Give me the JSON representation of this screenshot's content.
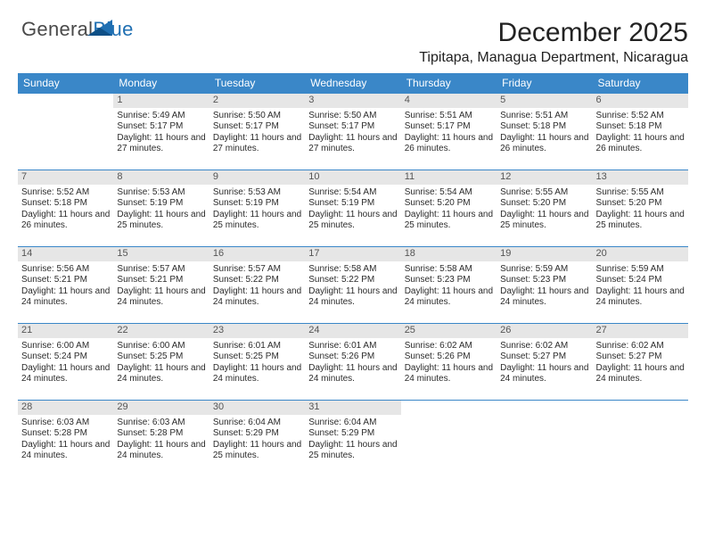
{
  "brand": {
    "word1": "General",
    "word2": "Blue",
    "accent_color": "#1f6fb2"
  },
  "title": "December 2025",
  "location": "Tipitapa, Managua Department, Nicaragua",
  "colors": {
    "header_bg": "#3a87c8",
    "header_text": "#ffffff",
    "daynum_bg": "#e6e6e6",
    "daynum_text": "#555555",
    "row_border": "#3a87c8",
    "body_text": "#2b2b2b",
    "page_bg": "#ffffff"
  },
  "typography": {
    "title_fontsize": 30,
    "location_fontsize": 16,
    "weekday_fontsize": 12,
    "cell_fontsize": 10,
    "daynum_fontsize": 11,
    "font_family": "Arial"
  },
  "weekdays": [
    "Sunday",
    "Monday",
    "Tuesday",
    "Wednesday",
    "Thursday",
    "Friday",
    "Saturday"
  ],
  "weeks": [
    [
      {
        "day": "",
        "sunrise": "",
        "sunset": "",
        "daylight": ""
      },
      {
        "day": "1",
        "sunrise": "Sunrise: 5:49 AM",
        "sunset": "Sunset: 5:17 PM",
        "daylight": "Daylight: 11 hours and 27 minutes."
      },
      {
        "day": "2",
        "sunrise": "Sunrise: 5:50 AM",
        "sunset": "Sunset: 5:17 PM",
        "daylight": "Daylight: 11 hours and 27 minutes."
      },
      {
        "day": "3",
        "sunrise": "Sunrise: 5:50 AM",
        "sunset": "Sunset: 5:17 PM",
        "daylight": "Daylight: 11 hours and 27 minutes."
      },
      {
        "day": "4",
        "sunrise": "Sunrise: 5:51 AM",
        "sunset": "Sunset: 5:17 PM",
        "daylight": "Daylight: 11 hours and 26 minutes."
      },
      {
        "day": "5",
        "sunrise": "Sunrise: 5:51 AM",
        "sunset": "Sunset: 5:18 PM",
        "daylight": "Daylight: 11 hours and 26 minutes."
      },
      {
        "day": "6",
        "sunrise": "Sunrise: 5:52 AM",
        "sunset": "Sunset: 5:18 PM",
        "daylight": "Daylight: 11 hours and 26 minutes."
      }
    ],
    [
      {
        "day": "7",
        "sunrise": "Sunrise: 5:52 AM",
        "sunset": "Sunset: 5:18 PM",
        "daylight": "Daylight: 11 hours and 26 minutes."
      },
      {
        "day": "8",
        "sunrise": "Sunrise: 5:53 AM",
        "sunset": "Sunset: 5:19 PM",
        "daylight": "Daylight: 11 hours and 25 minutes."
      },
      {
        "day": "9",
        "sunrise": "Sunrise: 5:53 AM",
        "sunset": "Sunset: 5:19 PM",
        "daylight": "Daylight: 11 hours and 25 minutes."
      },
      {
        "day": "10",
        "sunrise": "Sunrise: 5:54 AM",
        "sunset": "Sunset: 5:19 PM",
        "daylight": "Daylight: 11 hours and 25 minutes."
      },
      {
        "day": "11",
        "sunrise": "Sunrise: 5:54 AM",
        "sunset": "Sunset: 5:20 PM",
        "daylight": "Daylight: 11 hours and 25 minutes."
      },
      {
        "day": "12",
        "sunrise": "Sunrise: 5:55 AM",
        "sunset": "Sunset: 5:20 PM",
        "daylight": "Daylight: 11 hours and 25 minutes."
      },
      {
        "day": "13",
        "sunrise": "Sunrise: 5:55 AM",
        "sunset": "Sunset: 5:20 PM",
        "daylight": "Daylight: 11 hours and 25 minutes."
      }
    ],
    [
      {
        "day": "14",
        "sunrise": "Sunrise: 5:56 AM",
        "sunset": "Sunset: 5:21 PM",
        "daylight": "Daylight: 11 hours and 24 minutes."
      },
      {
        "day": "15",
        "sunrise": "Sunrise: 5:57 AM",
        "sunset": "Sunset: 5:21 PM",
        "daylight": "Daylight: 11 hours and 24 minutes."
      },
      {
        "day": "16",
        "sunrise": "Sunrise: 5:57 AM",
        "sunset": "Sunset: 5:22 PM",
        "daylight": "Daylight: 11 hours and 24 minutes."
      },
      {
        "day": "17",
        "sunrise": "Sunrise: 5:58 AM",
        "sunset": "Sunset: 5:22 PM",
        "daylight": "Daylight: 11 hours and 24 minutes."
      },
      {
        "day": "18",
        "sunrise": "Sunrise: 5:58 AM",
        "sunset": "Sunset: 5:23 PM",
        "daylight": "Daylight: 11 hours and 24 minutes."
      },
      {
        "day": "19",
        "sunrise": "Sunrise: 5:59 AM",
        "sunset": "Sunset: 5:23 PM",
        "daylight": "Daylight: 11 hours and 24 minutes."
      },
      {
        "day": "20",
        "sunrise": "Sunrise: 5:59 AM",
        "sunset": "Sunset: 5:24 PM",
        "daylight": "Daylight: 11 hours and 24 minutes."
      }
    ],
    [
      {
        "day": "21",
        "sunrise": "Sunrise: 6:00 AM",
        "sunset": "Sunset: 5:24 PM",
        "daylight": "Daylight: 11 hours and 24 minutes."
      },
      {
        "day": "22",
        "sunrise": "Sunrise: 6:00 AM",
        "sunset": "Sunset: 5:25 PM",
        "daylight": "Daylight: 11 hours and 24 minutes."
      },
      {
        "day": "23",
        "sunrise": "Sunrise: 6:01 AM",
        "sunset": "Sunset: 5:25 PM",
        "daylight": "Daylight: 11 hours and 24 minutes."
      },
      {
        "day": "24",
        "sunrise": "Sunrise: 6:01 AM",
        "sunset": "Sunset: 5:26 PM",
        "daylight": "Daylight: 11 hours and 24 minutes."
      },
      {
        "day": "25",
        "sunrise": "Sunrise: 6:02 AM",
        "sunset": "Sunset: 5:26 PM",
        "daylight": "Daylight: 11 hours and 24 minutes."
      },
      {
        "day": "26",
        "sunrise": "Sunrise: 6:02 AM",
        "sunset": "Sunset: 5:27 PM",
        "daylight": "Daylight: 11 hours and 24 minutes."
      },
      {
        "day": "27",
        "sunrise": "Sunrise: 6:02 AM",
        "sunset": "Sunset: 5:27 PM",
        "daylight": "Daylight: 11 hours and 24 minutes."
      }
    ],
    [
      {
        "day": "28",
        "sunrise": "Sunrise: 6:03 AM",
        "sunset": "Sunset: 5:28 PM",
        "daylight": "Daylight: 11 hours and 24 minutes."
      },
      {
        "day": "29",
        "sunrise": "Sunrise: 6:03 AM",
        "sunset": "Sunset: 5:28 PM",
        "daylight": "Daylight: 11 hours and 24 minutes."
      },
      {
        "day": "30",
        "sunrise": "Sunrise: 6:04 AM",
        "sunset": "Sunset: 5:29 PM",
        "daylight": "Daylight: 11 hours and 25 minutes."
      },
      {
        "day": "31",
        "sunrise": "Sunrise: 6:04 AM",
        "sunset": "Sunset: 5:29 PM",
        "daylight": "Daylight: 11 hours and 25 minutes."
      },
      {
        "day": "",
        "sunrise": "",
        "sunset": "",
        "daylight": ""
      },
      {
        "day": "",
        "sunrise": "",
        "sunset": "",
        "daylight": ""
      },
      {
        "day": "",
        "sunrise": "",
        "sunset": "",
        "daylight": ""
      }
    ]
  ]
}
